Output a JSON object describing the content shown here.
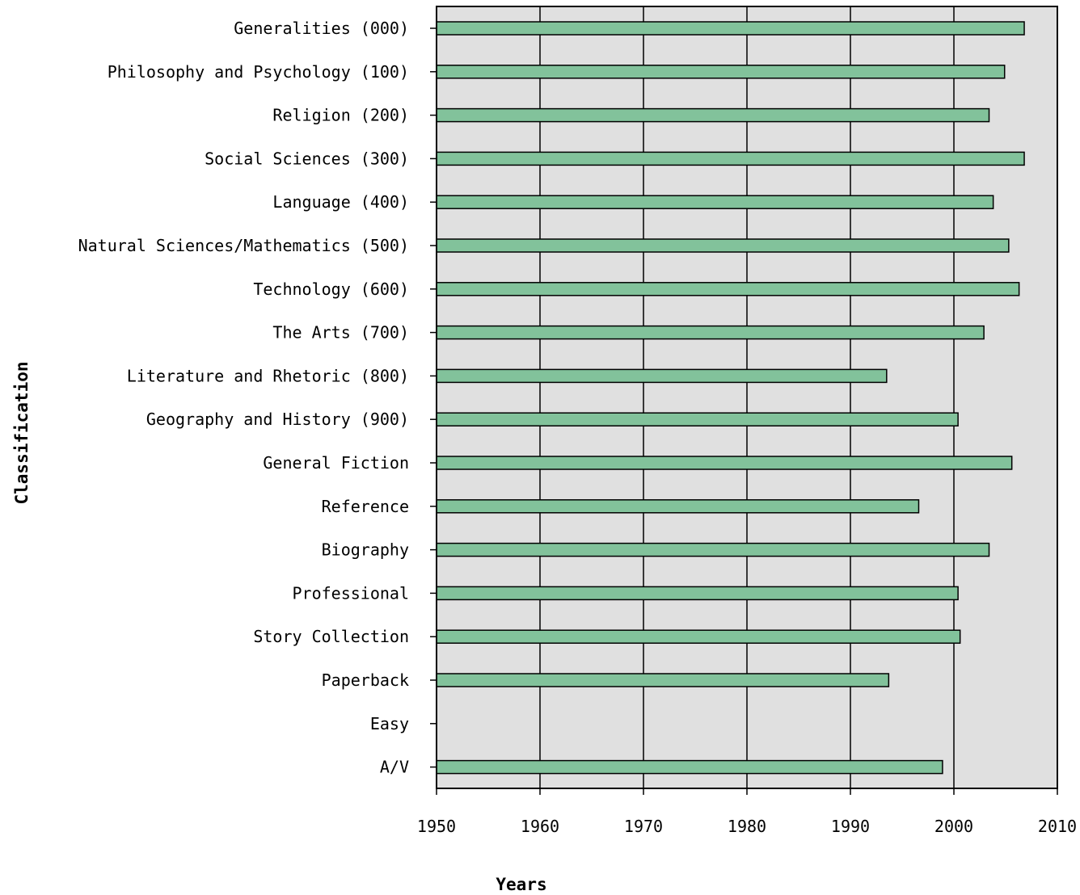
{
  "chart_data": {
    "type": "bar",
    "orientation": "horizontal",
    "xlabel": "Years",
    "ylabel": "Classification",
    "xlim": [
      1950,
      2010
    ],
    "xticks": [
      1950,
      1960,
      1970,
      1980,
      1990,
      2000,
      2010
    ],
    "grid": true,
    "categories": [
      "Generalities (000)",
      "Philosophy and Psychology (100)",
      "Religion (200)",
      "Social Sciences (300)",
      "Language (400)",
      "Natural Sciences/Mathematics (500)",
      "Technology (600)",
      "The Arts (700)",
      "Literature and Rhetoric (800)",
      "Geography and History (900)",
      "General Fiction",
      "Reference",
      "Biography",
      "Professional",
      "Story Collection",
      "Paperback",
      "Easy",
      "A/V"
    ],
    "values": [
      2006.8,
      2004.9,
      2003.4,
      2006.8,
      2003.8,
      2005.3,
      2006.3,
      2002.9,
      1993.5,
      2000.4,
      2005.6,
      1996.6,
      2003.4,
      2000.4,
      2000.6,
      1993.7,
      null,
      1998.9
    ],
    "colors": {
      "bar": "#82c29b",
      "bar_border": "#000000",
      "plot_background": "#e0e0e0",
      "grid": "#000000"
    }
  }
}
